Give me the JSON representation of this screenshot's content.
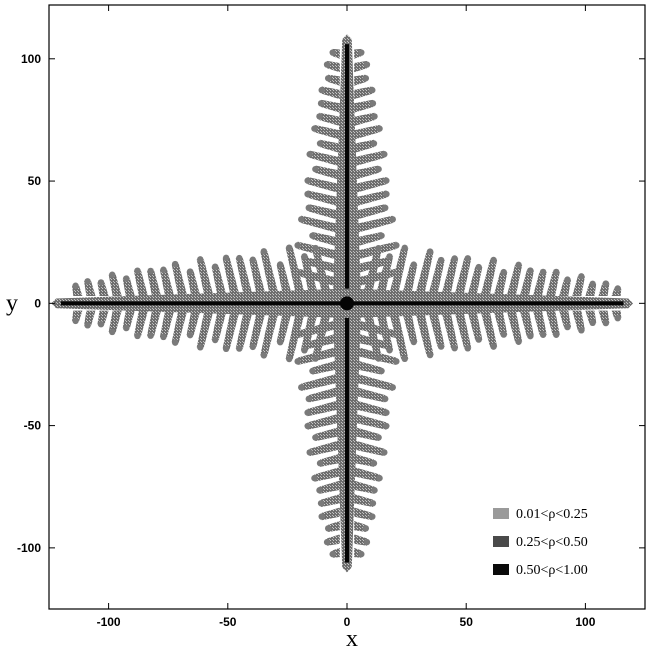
{
  "chart_data": {
    "type": "scatter",
    "title": "",
    "xlabel": "x",
    "ylabel": "y",
    "xlim": [
      -125,
      125
    ],
    "ylim": [
      -125,
      122
    ],
    "xticks": [
      -100,
      -50,
      0,
      50,
      100
    ],
    "yticks": [
      100,
      50,
      0,
      -50,
      -100
    ],
    "xtick_labels": [
      "-100",
      "-50",
      "0",
      "50",
      "100"
    ],
    "ytick_labels": [
      "100",
      "50",
      "0",
      "-50",
      "-100"
    ],
    "grid": false,
    "legend_position": "bottom-right",
    "legend": [
      {
        "label": "0.01<ρ<0.25",
        "color": "#9a9a9a"
      },
      {
        "label": "0.25<ρ<0.50",
        "color": "#4a4a4a"
      },
      {
        "label": "0.50<ρ<1.00",
        "color": "#0a0a0a"
      }
    ],
    "description_of_pattern": "four-fold dendritic crystal",
    "arms": [
      {
        "direction": "up",
        "tip": [
          -5,
          108
        ]
      },
      {
        "direction": "down",
        "tip": [
          -2,
          -108
        ]
      },
      {
        "direction": "left",
        "tip": [
          -122,
          -2
        ]
      },
      {
        "direction": "right",
        "tip": [
          118,
          2
        ]
      }
    ]
  }
}
